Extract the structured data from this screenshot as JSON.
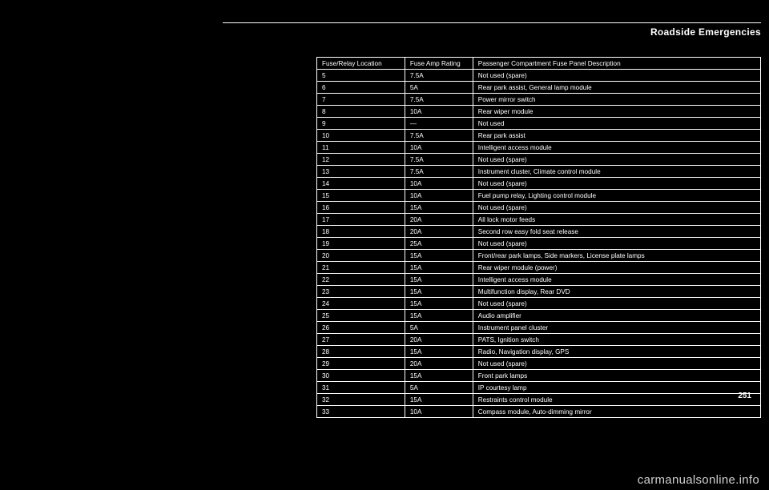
{
  "section_title": "Roadside Emergencies",
  "page_number": "251",
  "watermark": "carmanualsonline.info",
  "columns": [
    "Fuse/Relay Location",
    "Fuse Amp Rating",
    "Passenger Compartment Fuse Panel Description"
  ],
  "rows": [
    [
      "5",
      "7.5A",
      "Not used (spare)"
    ],
    [
      "6",
      "5A",
      "Rear park assist, General lamp module"
    ],
    [
      "7",
      "7.5A",
      "Power mirror switch"
    ],
    [
      "8",
      "10A",
      "Rear wiper module"
    ],
    [
      "9",
      "—",
      "Not used"
    ],
    [
      "10",
      "7.5A",
      "Rear park assist"
    ],
    [
      "11",
      "10A",
      "Intelligent access module"
    ],
    [
      "12",
      "7.5A",
      "Not used (spare)"
    ],
    [
      "13",
      "7.5A",
      "Instrument cluster, Climate control module"
    ],
    [
      "14",
      "10A",
      "Not used (spare)"
    ],
    [
      "15",
      "10A",
      "Fuel pump relay, Lighting control module"
    ],
    [
      "16",
      "15A",
      "Not used (spare)"
    ],
    [
      "17",
      "20A",
      "All lock motor feeds"
    ],
    [
      "18",
      "20A",
      "Second row easy fold seat release"
    ],
    [
      "19",
      "25A",
      "Not used (spare)"
    ],
    [
      "20",
      "15A",
      "Front/rear park lamps, Side markers, License plate lamps"
    ],
    [
      "21",
      "15A",
      "Rear wiper module (power)"
    ],
    [
      "22",
      "15A",
      "Intelligent access module"
    ],
    [
      "23",
      "15A",
      "Multifunction display, Rear DVD"
    ],
    [
      "24",
      "15A",
      "Not used (spare)"
    ],
    [
      "25",
      "15A",
      "Audio amplifier"
    ],
    [
      "26",
      "5A",
      "Instrument panel cluster"
    ],
    [
      "27",
      "20A",
      "PATS, Ignition switch"
    ],
    [
      "28",
      "15A",
      "Radio, Navigation display, GPS"
    ],
    [
      "29",
      "20A",
      "Not used (spare)"
    ],
    [
      "30",
      "15A",
      "Front park lamps"
    ],
    [
      "31",
      "5A",
      "IP courtesy lamp"
    ],
    [
      "32",
      "15A",
      "Restraints control module"
    ],
    [
      "33",
      "10A",
      "Compass module, Auto-dimming mirror"
    ]
  ]
}
